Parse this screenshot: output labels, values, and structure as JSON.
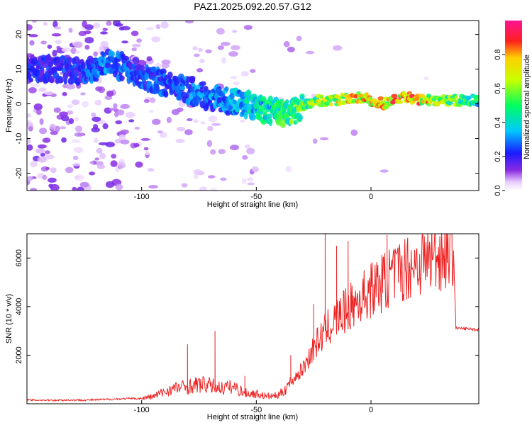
{
  "title": "PAZ1.2025.092.20.57.G12",
  "chart_data": [
    {
      "type": "heatmap",
      "title": "PAZ1.2025.092.20.57.G12",
      "xlabel": "Height of straight line (km)",
      "ylabel": "Frequency (Hz)",
      "xlim": [
        -150,
        47
      ],
      "ylim": [
        -25,
        24
      ],
      "xticks": [
        -100,
        -50,
        0
      ],
      "yticks": [
        -20,
        -10,
        0,
        10,
        20
      ],
      "colorbar": {
        "label": "Normalized spectral amplitude",
        "range": [
          0,
          1
        ],
        "ticks": [
          "0.0",
          "0.2",
          "0.4",
          "0.6",
          "0.8"
        ],
        "colormap": "rainbow (white-violet-blue-cyan-green-yellow-red-magenta)"
      },
      "ridge": {
        "name": "",
        "x": [
          -135,
          -125,
          -115,
          -105,
          -95,
          -85,
          -75,
          -65,
          -55,
          -45,
          -35,
          -25,
          -15,
          -5,
          5,
          15,
          25,
          35,
          47
        ],
        "frequency": [
          10,
          9,
          12,
          10,
          7,
          5,
          3,
          1,
          0,
          -2,
          -3,
          1,
          1,
          2,
          0,
          2,
          1,
          1,
          1
        ],
        "peak_amplitude": [
          0.25,
          0.3,
          0.35,
          0.3,
          0.3,
          0.3,
          0.35,
          0.35,
          0.45,
          0.5,
          0.6,
          0.7,
          0.8,
          0.85,
          0.9,
          0.9,
          0.85,
          0.7,
          0.5
        ]
      }
    },
    {
      "type": "line",
      "title": "",
      "xlabel": "Height of straight line (km)",
      "ylabel": "SNR (10 * v/v)",
      "xlim": [
        -150,
        47
      ],
      "ylim": [
        0,
        7000
      ],
      "xticks": [
        -100,
        -50,
        0
      ],
      "yticks": [
        2000,
        4000,
        6000
      ],
      "series": [
        {
          "name": "",
          "color": "#ee2222",
          "x": [
            -150,
            -140,
            -130,
            -120,
            -110,
            -100,
            -95,
            -90,
            -85,
            -80,
            -75,
            -70,
            -65,
            -60,
            -55,
            -50,
            -45,
            -40,
            -35,
            -30,
            -25,
            -20,
            -15,
            -10,
            -5,
            0,
            5,
            10,
            15,
            20,
            25,
            30,
            35,
            36,
            37,
            40,
            47
          ],
          "y": [
            150,
            150,
            150,
            160,
            200,
            220,
            300,
            500,
            650,
            700,
            800,
            750,
            650,
            700,
            450,
            400,
            300,
            350,
            900,
            1400,
            2300,
            3000,
            3500,
            3900,
            4300,
            4700,
            5000,
            5300,
            5600,
            5800,
            6000,
            6150,
            6300,
            6350,
            3100,
            3100,
            3050
          ],
          "spikes": [
            {
              "x": -80,
              "y": 2450
            },
            {
              "x": -68,
              "y": 3000
            },
            {
              "x": -55,
              "y": 1150
            },
            {
              "x": -35,
              "y": 2000
            },
            {
              "x": -25,
              "y": 4100
            },
            {
              "x": -20,
              "y": 7000
            },
            {
              "x": -15,
              "y": 6500
            },
            {
              "x": -10,
              "y": 6700
            },
            {
              "x": 7,
              "y": 6950
            },
            {
              "x": 25,
              "y": 6500
            }
          ]
        }
      ]
    }
  ]
}
